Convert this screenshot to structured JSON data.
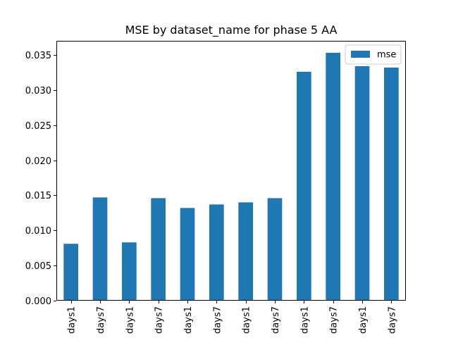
{
  "chart_data": {
    "type": "bar",
    "title": "MSE by dataset_name for phase 5 AA",
    "xlabel": "",
    "ylabel": "",
    "categories": [
      "days1",
      "days7",
      "days1",
      "days7",
      "days1",
      "days7",
      "days1",
      "days7",
      "days1",
      "days7",
      "days1",
      "days7"
    ],
    "series": [
      {
        "name": "mse",
        "color": "#1f77b4",
        "values": [
          0.0081,
          0.0147,
          0.0083,
          0.0146,
          0.0132,
          0.0137,
          0.014,
          0.0146,
          0.0326,
          0.0353,
          0.0334,
          0.0332
        ]
      }
    ],
    "ylim": [
      0.0,
      0.037
    ],
    "yticks": [
      0.0,
      0.005,
      0.01,
      0.015,
      0.02,
      0.025,
      0.03,
      0.035
    ],
    "ytick_labels": [
      "0.000",
      "0.005",
      "0.010",
      "0.015",
      "0.020",
      "0.025",
      "0.030",
      "0.035"
    ],
    "legend_position": "upper-right",
    "grid": false
  }
}
